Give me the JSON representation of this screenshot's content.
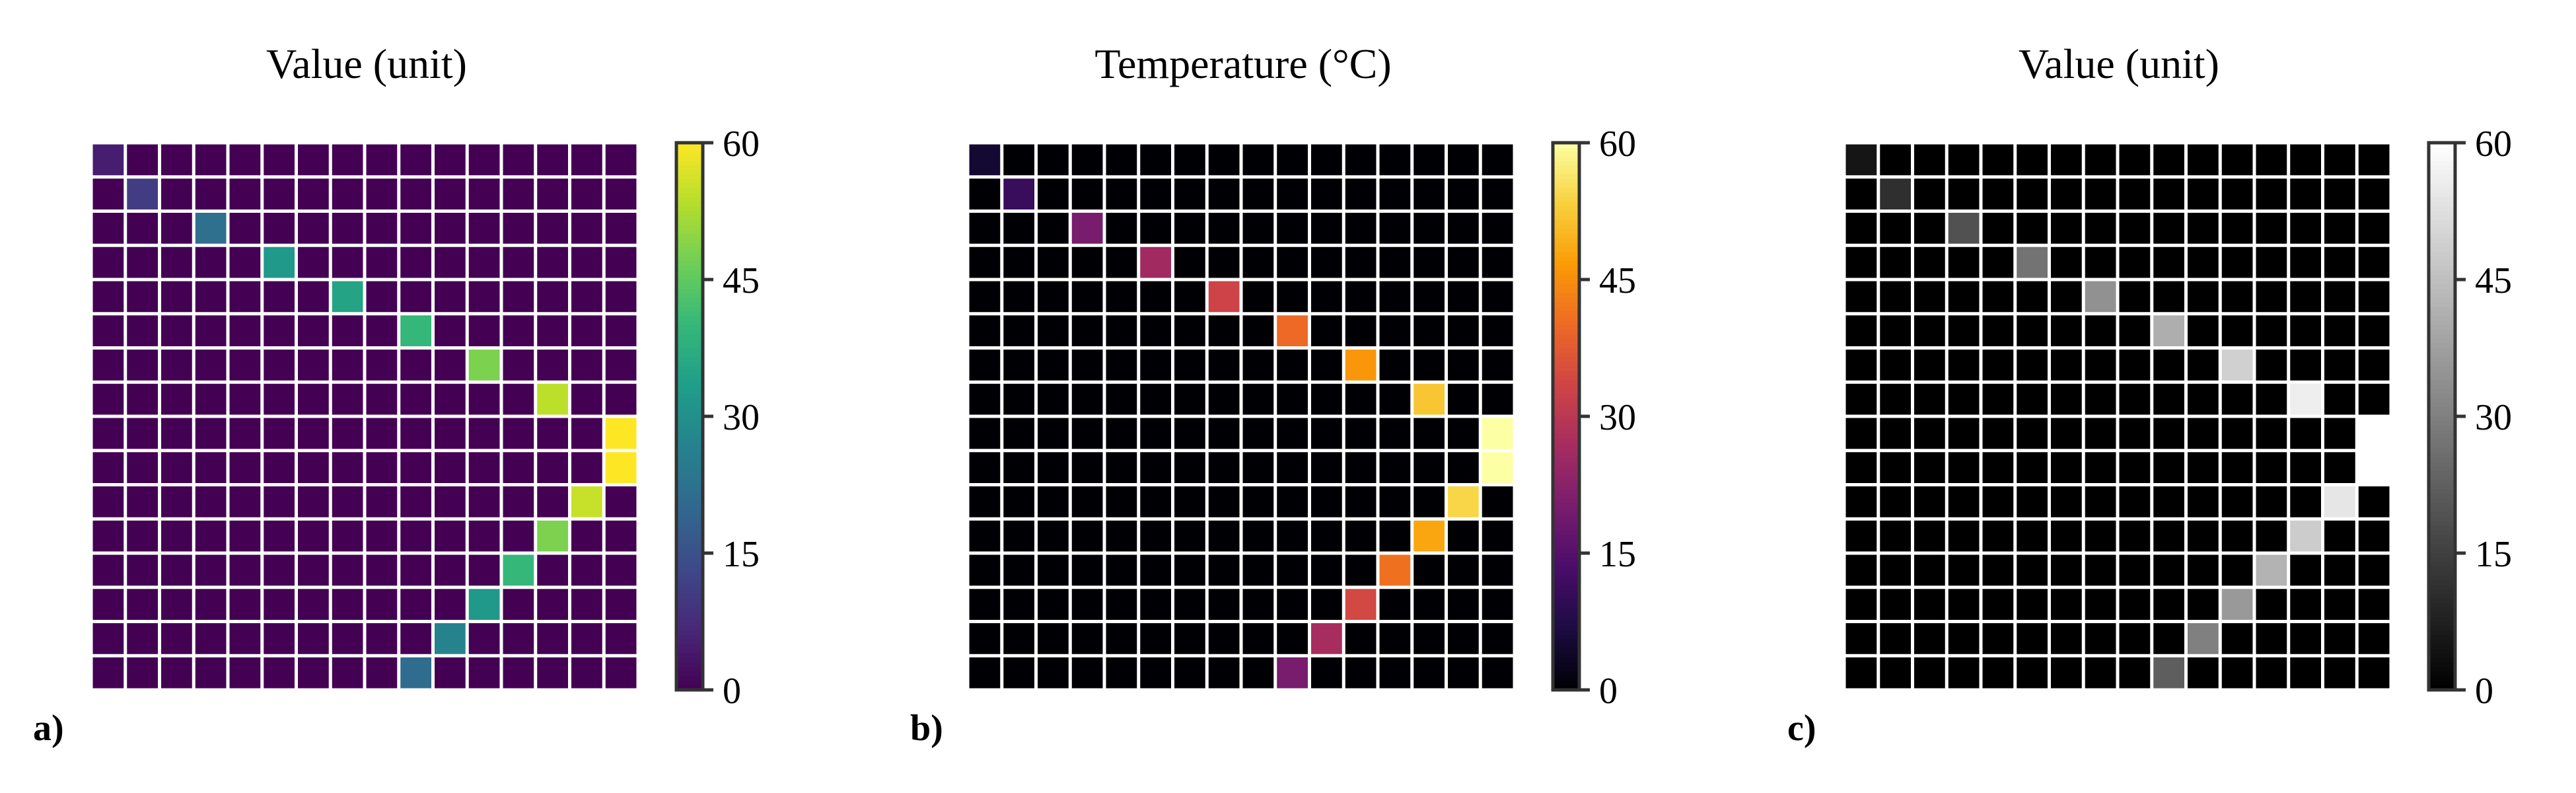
{
  "colors": {
    "background": "#ffffff",
    "cell_gap": "#ffffff",
    "axis": "#333333"
  },
  "chart_data": [
    {
      "panel_label": "a)",
      "type": "heatmap",
      "title": "Value (unit)",
      "colormap": "viridis",
      "grid": {
        "rows": 16,
        "cols": 16
      },
      "vmin": 0,
      "vmax": 60,
      "colorbar_ticks": [
        0,
        15,
        30,
        45,
        60
      ],
      "background_value": 0,
      "nonzero_cells": [
        {
          "row": 0,
          "col": 0,
          "value": 5
        },
        {
          "row": 1,
          "col": 1,
          "value": 11
        },
        {
          "row": 2,
          "col": 3,
          "value": 22
        },
        {
          "row": 3,
          "col": 5,
          "value": 32
        },
        {
          "row": 4,
          "col": 7,
          "value": 35
        },
        {
          "row": 5,
          "col": 9,
          "value": 40
        },
        {
          "row": 6,
          "col": 11,
          "value": 48
        },
        {
          "row": 7,
          "col": 13,
          "value": 54
        },
        {
          "row": 8,
          "col": 15,
          "value": 60
        },
        {
          "row": 9,
          "col": 15,
          "value": 60
        },
        {
          "row": 10,
          "col": 14,
          "value": 55
        },
        {
          "row": 11,
          "col": 13,
          "value": 48
        },
        {
          "row": 12,
          "col": 12,
          "value": 40
        },
        {
          "row": 13,
          "col": 11,
          "value": 32
        },
        {
          "row": 14,
          "col": 10,
          "value": 27
        },
        {
          "row": 15,
          "col": 9,
          "value": 21
        }
      ]
    },
    {
      "panel_label": "b)",
      "type": "heatmap",
      "title": "Temperature (°C)",
      "colormap": "inferno",
      "grid": {
        "rows": 16,
        "cols": 16
      },
      "vmin": 0,
      "vmax": 60,
      "colorbar_ticks": [
        0,
        15,
        30,
        45,
        60
      ],
      "background_value": 0,
      "nonzero_cells": [
        {
          "row": 0,
          "col": 0,
          "value": 5
        },
        {
          "row": 1,
          "col": 1,
          "value": 11
        },
        {
          "row": 2,
          "col": 3,
          "value": 20
        },
        {
          "row": 3,
          "col": 5,
          "value": 26
        },
        {
          "row": 4,
          "col": 7,
          "value": 33
        },
        {
          "row": 5,
          "col": 9,
          "value": 40
        },
        {
          "row": 6,
          "col": 11,
          "value": 46
        },
        {
          "row": 7,
          "col": 13,
          "value": 52
        },
        {
          "row": 8,
          "col": 15,
          "value": 60
        },
        {
          "row": 9,
          "col": 15,
          "value": 60
        },
        {
          "row": 10,
          "col": 14,
          "value": 54
        },
        {
          "row": 11,
          "col": 13,
          "value": 48
        },
        {
          "row": 12,
          "col": 12,
          "value": 41
        },
        {
          "row": 13,
          "col": 11,
          "value": 34
        },
        {
          "row": 14,
          "col": 10,
          "value": 27
        },
        {
          "row": 15,
          "col": 9,
          "value": 20
        }
      ]
    },
    {
      "panel_label": "c)",
      "type": "heatmap",
      "title": "Value (unit)",
      "colormap": "gray",
      "grid": {
        "rows": 16,
        "cols": 16
      },
      "vmin": 0,
      "vmax": 60,
      "colorbar_ticks": [
        0,
        15,
        30,
        45,
        60
      ],
      "background_value": 0,
      "nonzero_cells": [
        {
          "row": 0,
          "col": 0,
          "value": 5
        },
        {
          "row": 1,
          "col": 1,
          "value": 11
        },
        {
          "row": 2,
          "col": 3,
          "value": 19
        },
        {
          "row": 3,
          "col": 5,
          "value": 27
        },
        {
          "row": 4,
          "col": 7,
          "value": 34
        },
        {
          "row": 5,
          "col": 9,
          "value": 41
        },
        {
          "row": 6,
          "col": 11,
          "value": 49
        },
        {
          "row": 7,
          "col": 13,
          "value": 56
        },
        {
          "row": 8,
          "col": 15,
          "value": 60
        },
        {
          "row": 9,
          "col": 15,
          "value": 60
        },
        {
          "row": 10,
          "col": 14,
          "value": 54
        },
        {
          "row": 11,
          "col": 13,
          "value": 48
        },
        {
          "row": 12,
          "col": 12,
          "value": 42
        },
        {
          "row": 13,
          "col": 11,
          "value": 36
        },
        {
          "row": 14,
          "col": 10,
          "value": 30
        },
        {
          "row": 15,
          "col": 9,
          "value": 22
        }
      ]
    }
  ]
}
